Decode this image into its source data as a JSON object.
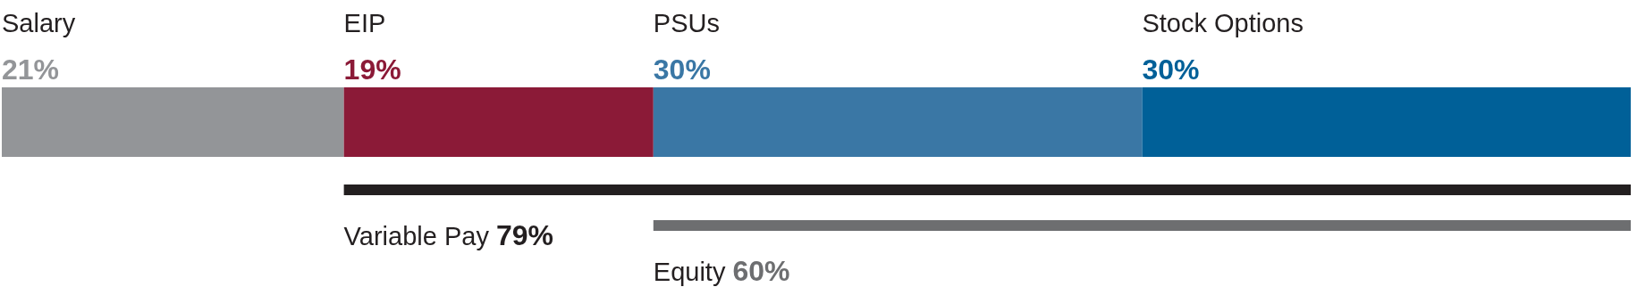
{
  "chart_data": {
    "type": "bar",
    "orientation": "horizontal",
    "stacked": true,
    "categories": [
      null
    ],
    "series": [
      {
        "name": "Salary",
        "color": "#939598",
        "values": [
          21
        ],
        "value_labels": [
          "21%"
        ]
      },
      {
        "name": "EIP",
        "color": "#8b1a37",
        "values": [
          19
        ],
        "value_labels": [
          "19%"
        ]
      },
      {
        "name": "PSUs",
        "color": "#3a77a5",
        "values": [
          30
        ],
        "value_labels": [
          "30%"
        ]
      },
      {
        "name": "Stock Options",
        "color": "#006098",
        "values": [
          30
        ],
        "value_labels": [
          "30%"
        ]
      }
    ],
    "annotations": [
      "Variable Pay 79%",
      "Equity 60%"
    ]
  }
}
